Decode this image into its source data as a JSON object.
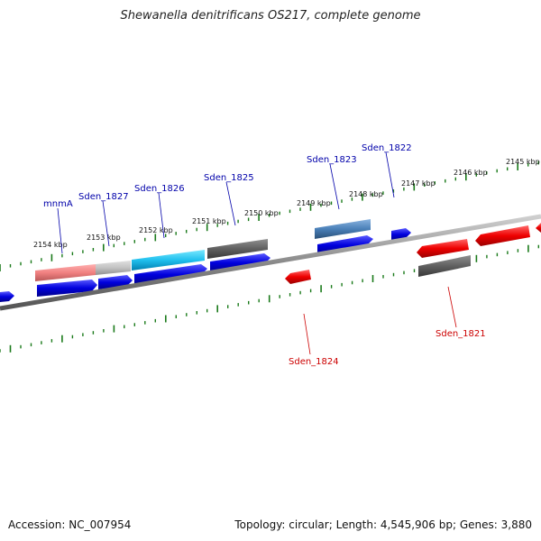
{
  "header": {
    "title": "Shewanella denitrificans OS217, complete genome"
  },
  "footer": {
    "accession_label": "Accession:",
    "accession": "NC_007954",
    "topology_label": "Topology:",
    "topology": "circular",
    "length_label": "Length:",
    "length": "4,545,906 bp",
    "genes_label": "Genes:",
    "genes": "3,880"
  },
  "scale": {
    "ticks": [
      {
        "label": "2154 kbp"
      },
      {
        "label": "2153 kbp"
      },
      {
        "label": "2152 kbp"
      },
      {
        "label": "2151 kbp"
      },
      {
        "label": "2150 kbp"
      },
      {
        "label": "2149 kbp"
      },
      {
        "label": "2148 kbp"
      },
      {
        "label": "2147 kbp"
      },
      {
        "label": "2146 kbp"
      },
      {
        "label": "2145 kbp"
      }
    ]
  },
  "labels": {
    "mnmA": "mnmA",
    "sden_1827": "Sden_1827",
    "sden_1826": "Sden_1826",
    "sden_1825": "Sden_1825",
    "sden_1823": "Sden_1823",
    "sden_1822": "Sden_1822",
    "sden_1824": "Sden_1824",
    "sden_1821": "Sden_1821"
  },
  "colors": {
    "forward_label": "#0000aa",
    "reverse_label": "#cc0000",
    "cds_forward": "#0000dd",
    "cds_reverse": "#ee0000",
    "tick": "#1a7a1a",
    "backbone": "#888888"
  }
}
